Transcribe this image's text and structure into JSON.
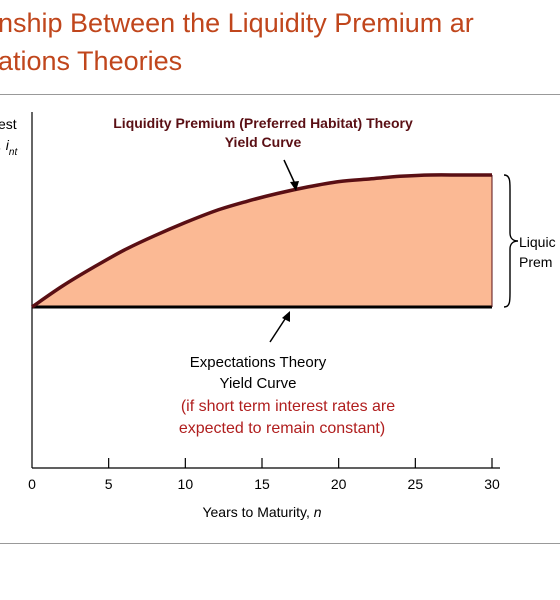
{
  "slide": {
    "title_line1": "nship Between the Liquidity Premium  ar",
    "title_line2": "ations Theories"
  },
  "colors": {
    "title": "#c0461c",
    "premium_fill": "#fbb994",
    "curve": "#5a0f14",
    "axis": "#000000",
    "note": "#b01e1e"
  },
  "chart_data": {
    "type": "area",
    "ylabel_line1": "est",
    "ylabel_line2": ", i",
    "ylabel_sub": "nt",
    "xlabel": "Years to Maturity, ",
    "xlabel_var": "n",
    "xlim": [
      0,
      30
    ],
    "xticks": [
      0,
      5,
      10,
      15,
      20,
      25,
      30
    ],
    "series": [
      {
        "name": "Liquidity Premium (Preferred Habitat) Theory Yield Curve",
        "x": [
          0,
          2,
          4,
          6,
          8,
          10,
          12,
          14,
          16,
          18,
          20,
          22,
          24,
          26,
          28,
          30
        ],
        "y": [
          0,
          0.16,
          0.3,
          0.43,
          0.54,
          0.64,
          0.73,
          0.8,
          0.86,
          0.91,
          0.95,
          0.97,
          0.99,
          1.0,
          1.0,
          1.0
        ]
      },
      {
        "name": "Expectations Theory Yield Curve",
        "x": [
          0,
          30
        ],
        "y": [
          0,
          0
        ]
      }
    ],
    "annotations": {
      "lp_label_line1": "Liquidity Premium (Preferred Habitat) Theory",
      "lp_label_line2": "Yield Curve",
      "et_label_line1": "Expectations Theory",
      "et_label_line2": "Yield Curve",
      "note_line1": "(if short term interest rates are",
      "note_line2": "expected to remain constant)",
      "brace_label_line1": "Liquic",
      "brace_label_line2": "Prem"
    }
  }
}
